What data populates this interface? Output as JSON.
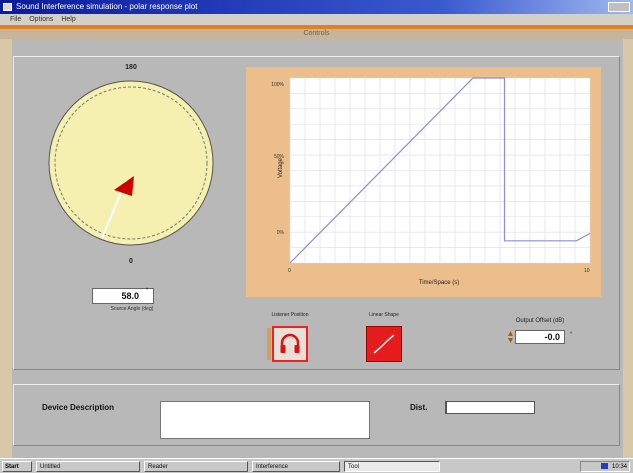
{
  "window": {
    "title": "Sound Interference simulation - polar response plot",
    "menu": [
      "File",
      "Options",
      "Help"
    ],
    "subtitle": "Controls"
  },
  "dial": {
    "top_label": "180",
    "bottom_label": "0",
    "colors": {
      "face": "#f5f0b0",
      "pointer": "#cc0000",
      "needle": "#ffffff"
    }
  },
  "angle": {
    "value": "58.0",
    "unit": "°",
    "caption": "Source Angle (deg)"
  },
  "chart_data": {
    "type": "line",
    "title": "",
    "xlabel": "Time/Space (s)",
    "ylabel": "Voltage",
    "y_ticks": [
      "100%",
      "50%",
      "0%"
    ],
    "x_ticks": [
      "0",
      "10"
    ],
    "xlim": [
      0,
      10
    ],
    "ylim": [
      0,
      1
    ],
    "grid": true,
    "series": [
      {
        "color": "#8c8ce0",
        "x": [
          0,
          6.1,
          7.15,
          7.15,
          9.55,
          10
        ],
        "y": [
          0,
          1,
          1,
          0.12,
          0.12,
          0.16
        ]
      }
    ]
  },
  "controls": {
    "headphone_label": "Listener Position",
    "curve_label": "Linear Shape"
  },
  "offset": {
    "label": "Output Offset (dB)",
    "value": "-0.0",
    "unit": "°"
  },
  "bottom": {
    "description_label": "Device Description",
    "distance_label": "Dist."
  },
  "taskbar": {
    "start": "Start",
    "items": [
      "Untitled",
      "Reader",
      "Interference",
      "Tool"
    ],
    "time": "10:34"
  }
}
